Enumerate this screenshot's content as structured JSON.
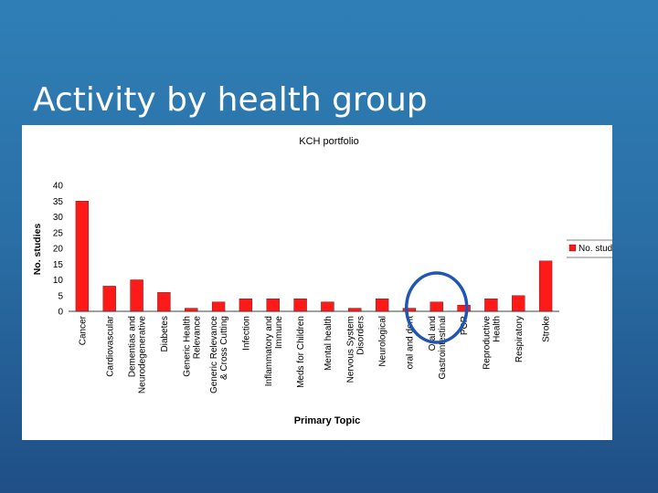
{
  "slide": {
    "title": "Activity by health group"
  },
  "chart_data": {
    "type": "bar",
    "title": "KCH portfolio",
    "xlabel": "Primary Topic",
    "ylabel": "No. studies",
    "ylim": [
      0,
      40
    ],
    "yticks": [
      0,
      5,
      10,
      15,
      20,
      25,
      30,
      35,
      40
    ],
    "legend": {
      "position": "right",
      "entries": [
        "No. studies"
      ]
    },
    "grid": false,
    "bar_color": "#ff1a1a",
    "highlight_color": "#1f55b5",
    "highlight_category": "Oral and Gastrointestinal",
    "categories": [
      "Cancer",
      "Cardiovascular",
      "Dementias and Neurodegenerative",
      "Diabetes",
      "Generic Health Relevance",
      "Generic Relevance & Cross Cutting",
      "Infection",
      "Inflammatory and Immune",
      "Meds for Children",
      "Mental health",
      "Nervous System Disorders",
      "Neurological",
      "oral and dent",
      "Oral and Gastrointestinal",
      "PCR",
      "Reproductive Health",
      "Respiratory",
      "Stroke"
    ],
    "series": [
      {
        "name": "No. studies",
        "values": [
          35,
          8,
          10,
          6,
          1,
          3,
          4,
          4,
          4,
          3,
          1,
          4,
          1,
          3,
          2,
          4,
          5,
          16
        ]
      }
    ]
  }
}
